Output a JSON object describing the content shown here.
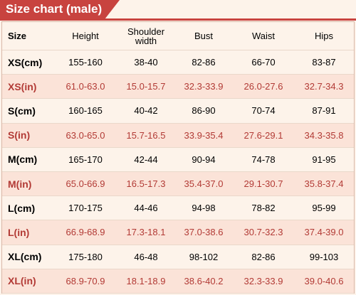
{
  "header": {
    "title": "Size chart (male)"
  },
  "table": {
    "columns": [
      "Size",
      "Height",
      "Shoulder width",
      "Bust",
      "Waist",
      "Hips"
    ],
    "rows": [
      [
        "XS(cm)",
        "155-160",
        "38-40",
        "82-86",
        "66-70",
        "83-87"
      ],
      [
        "XS(in)",
        "61.0-63.0",
        "15.0-15.7",
        "32.3-33.9",
        "26.0-27.6",
        "32.7-34.3"
      ],
      [
        "S(cm)",
        "160-165",
        "40-42",
        "86-90",
        "70-74",
        "87-91"
      ],
      [
        "S(in)",
        "63.0-65.0",
        "15.7-16.5",
        "33.9-35.4",
        "27.6-29.1",
        "34.3-35.8"
      ],
      [
        "M(cm)",
        "165-170",
        "42-44",
        "90-94",
        "74-78",
        "91-95"
      ],
      [
        "M(in)",
        "65.0-66.9",
        "16.5-17.3",
        "35.4-37.0",
        "29.1-30.7",
        "35.8-37.4"
      ],
      [
        "L(cm)",
        "170-175",
        "44-46",
        "94-98",
        "78-82",
        "95-99"
      ],
      [
        "L(in)",
        "66.9-68.9",
        "17.3-18.1",
        "37.0-38.6",
        "30.7-32.3",
        "37.4-39.0"
      ],
      [
        "XL(cm)",
        "175-180",
        "46-48",
        "98-102",
        "82-86",
        "99-103"
      ],
      [
        "XL(in)",
        "68.9-70.9",
        "18.1-18.9",
        "38.6-40.2",
        "32.3-33.9",
        "39.0-40.6"
      ]
    ]
  }
}
